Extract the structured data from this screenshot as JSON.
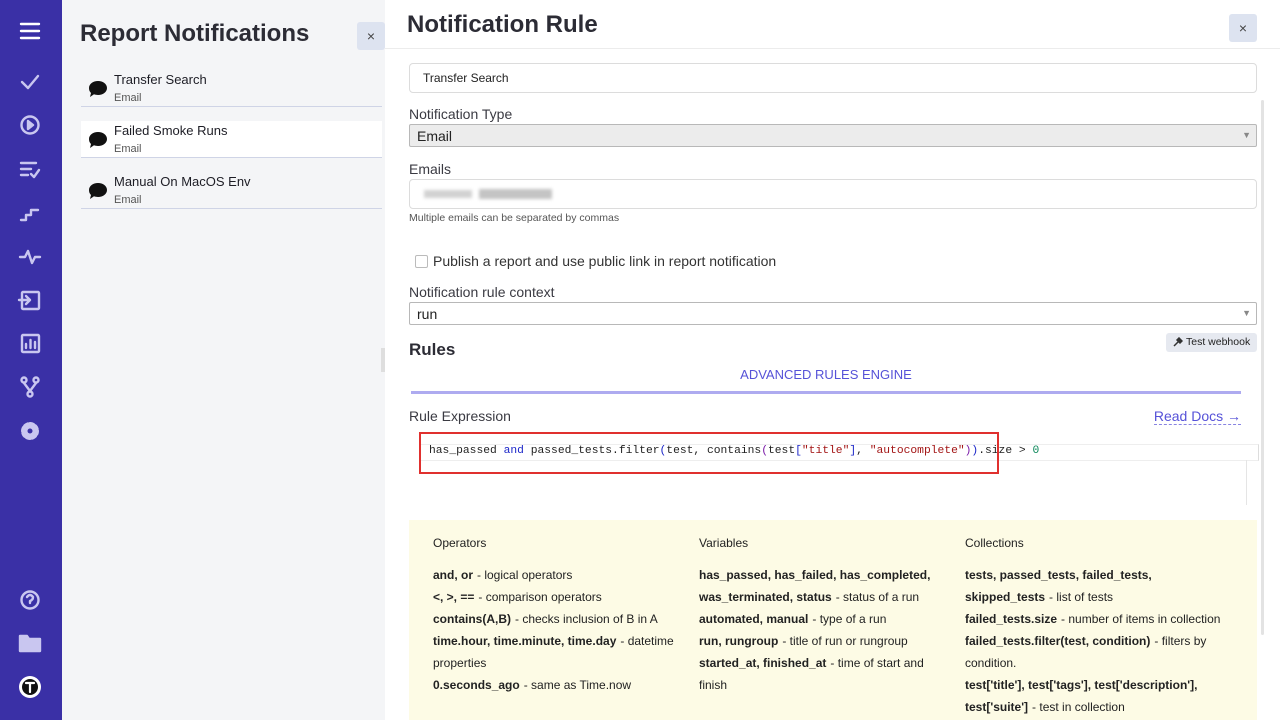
{
  "left_panel": {
    "title": "Report Notifications",
    "close": "×",
    "items": [
      {
        "name": "Transfer Search",
        "type": "Email"
      },
      {
        "name": "Failed Smoke Runs",
        "type": "Email"
      },
      {
        "name": "Manual On MacOS Env",
        "type": "Email"
      }
    ]
  },
  "right_panel": {
    "title": "Notification Rule",
    "close": "×",
    "name_value": "Transfer Search",
    "notification_type": {
      "label": "Notification Type",
      "value": "Email"
    },
    "emails": {
      "label": "Emails",
      "help": "Multiple emails can be separated by commas"
    },
    "checkbox_label": "Publish a report and use public link in report notification",
    "context": {
      "label": "Notification rule context",
      "value": "run"
    },
    "rules_heading": "Rules",
    "test_webhook": "Test webhook",
    "tab": "ADVANCED RULES ENGINE",
    "rule_expression_label": "Rule Expression",
    "read_docs": "Read Docs →",
    "code": [
      {
        "text": "has_passed ",
        "color": "#1f1f1f"
      },
      {
        "text": "and",
        "color": "#1a25c8"
      },
      {
        "text": " passed_tests.filter",
        "color": "#1f1f1f"
      },
      {
        "text": "(",
        "color": "#1a25c8"
      },
      {
        "text": "test, contains",
        "color": "#1f1f1f"
      },
      {
        "text": "(",
        "color": "#7a1aa8"
      },
      {
        "text": "test",
        "color": "#1f1f1f"
      },
      {
        "text": "[",
        "color": "#1a25c8"
      },
      {
        "text": "\"title\"",
        "color": "#a31515"
      },
      {
        "text": "]",
        "color": "#1a25c8"
      },
      {
        "text": ", ",
        "color": "#1f1f1f"
      },
      {
        "text": "\"autocomplete\"",
        "color": "#a31515"
      },
      {
        "text": ")",
        "color": "#7a1aa8"
      },
      {
        "text": ")",
        "color": "#1a25c8"
      },
      {
        "text": ".size > ",
        "color": "#1f1f1f"
      },
      {
        "text": "0",
        "color": "#098658"
      }
    ],
    "help": [
      {
        "title": "Operators",
        "items": [
          {
            "term": "and, or",
            "desc": "- logical operators"
          },
          {
            "term": "<, >, ==",
            "desc": "- comparison operators"
          },
          {
            "term": "contains(A,B)",
            "desc": "- checks inclusion of B in A"
          },
          {
            "term": "time.hour, time.minute, time.day",
            "desc": "- datetime properties"
          },
          {
            "term": "0.seconds_ago",
            "desc": "- same as Time.now"
          }
        ]
      },
      {
        "title": "Variables",
        "items": [
          {
            "term": "has_passed, has_failed, has_completed, was_terminated, status",
            "desc": "- status of a run"
          },
          {
            "term": "automated, manual",
            "desc": "- type of a run"
          },
          {
            "term": "run, rungroup",
            "desc": "- title of run or rungroup"
          },
          {
            "term": "started_at, finished_at",
            "desc": "- time of start and finish"
          }
        ]
      },
      {
        "title": "Collections",
        "items": [
          {
            "term": "tests, passed_tests, failed_tests, skipped_tests",
            "desc": "- list of tests"
          },
          {
            "term": "failed_tests.size",
            "desc": "- number of items in collection"
          },
          {
            "term": "failed_tests.filter(test, condition)",
            "desc": "- filters by condition."
          },
          {
            "term": "test['title'], test['tags'], test['description'], test['suite']",
            "desc": "- test in collection"
          }
        ]
      }
    ]
  }
}
